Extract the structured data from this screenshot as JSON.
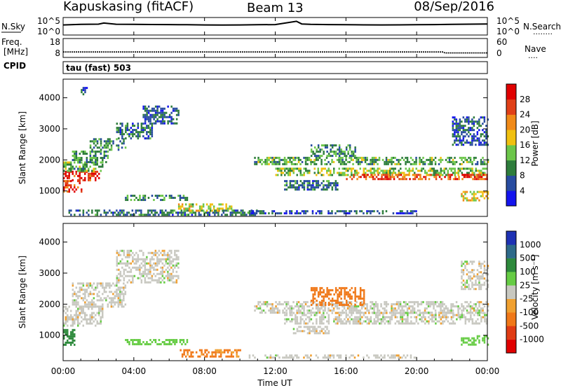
{
  "header": {
    "station": "Kapuskasing (fitACF)",
    "beam": "Beam 13",
    "date": "08/Sep/2016"
  },
  "sky_panel": {
    "left_label": "N.Sky",
    "left_top_tick": "10^5",
    "left_bottom_tick": "10^0",
    "right_top_tick": "10^5",
    "right_bottom_tick": "10^0",
    "right_label": "N.Search",
    "right_marker": "........"
  },
  "freq_panel": {
    "left_label_line1": "Freq.",
    "left_label_line2": "[MHz]",
    "left_top_tick": "18",
    "left_bottom_tick": "8",
    "right_top_tick": "60",
    "right_bottom_tick": "0",
    "right_label": "Nave",
    "right_marker": "....",
    "cpid_label": "CPID"
  },
  "cpid_text": "tau (fast) 503",
  "power_colorbar": {
    "label": "Power [dB]",
    "ticks": [
      "4",
      "8",
      "12",
      "16",
      "20",
      "24",
      "28"
    ],
    "colors": [
      "#1414ee",
      "#284ca0",
      "#2e7d3c",
      "#6cc64a",
      "#f0c010",
      "#f08a18",
      "#e04018",
      "#e00000"
    ]
  },
  "velocity_colorbar": {
    "label": "Velocity [m s⁻¹]",
    "ticks": [
      "1000",
      "500",
      "100",
      "25",
      "-25",
      "-100",
      "-500",
      "-1000"
    ],
    "colors": [
      "#1e32b4",
      "#2e6a8a",
      "#2e8a3c",
      "#66cc44",
      "#c8c8c0",
      "#f0a030",
      "#f07818",
      "#e03c14",
      "#e00000"
    ]
  },
  "x_axis": {
    "label": "Time UT",
    "ticks": [
      "00:00",
      "04:00",
      "08:00",
      "12:00",
      "16:00",
      "20:00",
      "00:00"
    ]
  },
  "chart_data": [
    {
      "type": "heatmap",
      "name_on_chart": "Power [dB]",
      "ylabel": "Slant Range [km]",
      "xlabel": "Time UT",
      "xlim_hours": [
        0,
        24
      ],
      "ylim_km": [
        180,
        4600
      ],
      "y_ticks": [
        1000,
        2000,
        3000,
        4000
      ],
      "x_ticks": [
        "00:00",
        "04:00",
        "08:00",
        "12:00",
        "16:00",
        "20:00",
        "00:00"
      ],
      "color_ticks": [
        4,
        8,
        12,
        16,
        20,
        24,
        28
      ],
      "bands": [
        {
          "t0": 0.0,
          "t1": 2.0,
          "r0": 1350,
          "r1": 1650,
          "value": 28
        },
        {
          "t0": 0.0,
          "t1": 1.0,
          "r0": 1000,
          "r1": 1350,
          "value": 26
        },
        {
          "t0": 0.0,
          "t1": 2.2,
          "r0": 1650,
          "r1": 1950,
          "value": 12
        },
        {
          "t0": 0.5,
          "t1": 2.5,
          "r0": 1950,
          "r1": 2300,
          "value": 10
        },
        {
          "t0": 1.5,
          "t1": 3.5,
          "r0": 2300,
          "r1": 2700,
          "value": 9
        },
        {
          "t0": 3.0,
          "t1": 5.0,
          "r0": 2700,
          "r1": 3200,
          "value": 8
        },
        {
          "t0": 4.5,
          "t1": 6.5,
          "r0": 3200,
          "r1": 3750,
          "value": 7
        },
        {
          "t0": 1.0,
          "t1": 1.3,
          "r0": 4100,
          "r1": 4350,
          "value": 6
        },
        {
          "t0": 0.3,
          "t1": 11.0,
          "r0": 250,
          "r1": 400,
          "value": 8
        },
        {
          "t0": 3.5,
          "t1": 7.0,
          "r0": 700,
          "r1": 880,
          "value": 10
        },
        {
          "t0": 6.5,
          "t1": 9.5,
          "r0": 350,
          "r1": 600,
          "value": 16
        },
        {
          "t0": 10.8,
          "t1": 24.0,
          "r0": 1850,
          "r1": 2100,
          "value": 12
        },
        {
          "t0": 12.0,
          "t1": 24.0,
          "r0": 1500,
          "r1": 1750,
          "value": 14
        },
        {
          "t0": 16.0,
          "t1": 24.0,
          "r0": 1350,
          "r1": 1550,
          "value": 26
        },
        {
          "t0": 12.5,
          "t1": 15.5,
          "r0": 1050,
          "r1": 1350,
          "value": 8
        },
        {
          "t0": 14.0,
          "t1": 16.5,
          "r0": 2100,
          "r1": 2500,
          "value": 10
        },
        {
          "t0": 10.5,
          "t1": 20.0,
          "r0": 250,
          "r1": 380,
          "value": 6
        },
        {
          "t0": 22.5,
          "t1": 24.0,
          "r0": 700,
          "r1": 1000,
          "value": 18
        },
        {
          "t0": 22.0,
          "t1": 24.0,
          "r0": 2500,
          "r1": 3400,
          "value": 6
        }
      ]
    },
    {
      "type": "heatmap",
      "name_on_chart": "Velocity [m s-1]",
      "ylabel": "Slant Range [km]",
      "xlabel": "Time UT",
      "xlim_hours": [
        0,
        24
      ],
      "ylim_km": [
        180,
        4600
      ],
      "y_ticks": [
        1000,
        2000,
        3000,
        4000
      ],
      "x_ticks": [
        "00:00",
        "04:00",
        "08:00",
        "12:00",
        "16:00",
        "20:00",
        "00:00"
      ],
      "color_ticks": [
        1000,
        500,
        100,
        25,
        -25,
        -100,
        -500,
        -1000
      ],
      "bands": [
        {
          "t0": 0.0,
          "t1": 2.2,
          "r0": 1300,
          "r1": 1950,
          "value": 0
        },
        {
          "t0": 0.5,
          "t1": 3.5,
          "r0": 1950,
          "r1": 2700,
          "value": 0
        },
        {
          "t0": 3.0,
          "t1": 6.5,
          "r0": 2700,
          "r1": 3750,
          "value": 0
        },
        {
          "t0": 0.0,
          "t1": 0.6,
          "r0": 700,
          "r1": 1200,
          "value": 150
        },
        {
          "t0": 3.5,
          "t1": 7.0,
          "r0": 700,
          "r1": 880,
          "value": 60
        },
        {
          "t0": 6.5,
          "t1": 10.0,
          "r0": 280,
          "r1": 550,
          "value": -120
        },
        {
          "t0": 10.8,
          "t1": 24.0,
          "r0": 1750,
          "r1": 2100,
          "value": 0
        },
        {
          "t0": 12.5,
          "t1": 24.0,
          "r0": 1350,
          "r1": 1750,
          "value": 0
        },
        {
          "t0": 14.0,
          "t1": 17.0,
          "r0": 2000,
          "r1": 2550,
          "value": -400
        },
        {
          "t0": 13.0,
          "t1": 15.0,
          "r0": 1050,
          "r1": 1300,
          "value": 0
        },
        {
          "t0": 10.5,
          "t1": 20.0,
          "r0": 250,
          "r1": 380,
          "value": 0
        },
        {
          "t0": 22.5,
          "t1": 24.0,
          "r0": 2500,
          "r1": 3400,
          "value": 0
        },
        {
          "t0": 22.5,
          "t1": 24.0,
          "r0": 700,
          "r1": 1000,
          "value": 60
        }
      ]
    },
    {
      "type": "line",
      "name_on_chart": "N.Sky",
      "y_scale": "log",
      "ylim": [
        1,
        100000
      ],
      "x_hours": [
        0,
        1,
        2,
        2.3,
        3,
        4,
        5,
        6,
        7,
        8,
        9,
        10,
        11,
        12,
        13.2,
        13.5,
        14,
        15,
        16,
        17,
        18,
        19,
        20,
        21,
        22,
        23,
        24
      ],
      "y": [
        1500,
        2500,
        3000,
        8000,
        2800,
        2500,
        2200,
        2000,
        1800,
        1500,
        1300,
        1500,
        1800,
        2000,
        40000,
        3500,
        2500,
        2000,
        1800,
        1600,
        1500,
        1600,
        1800,
        2000,
        2500,
        3000,
        3500
      ]
    },
    {
      "type": "line",
      "name_on_chart": "Freq. [MHz]",
      "ylim": [
        8,
        18
      ],
      "x_hours": [
        0,
        12,
        21.5,
        21.6,
        24
      ],
      "y": [
        10.3,
        10.3,
        10.3,
        9.6,
        9.6
      ]
    }
  ]
}
